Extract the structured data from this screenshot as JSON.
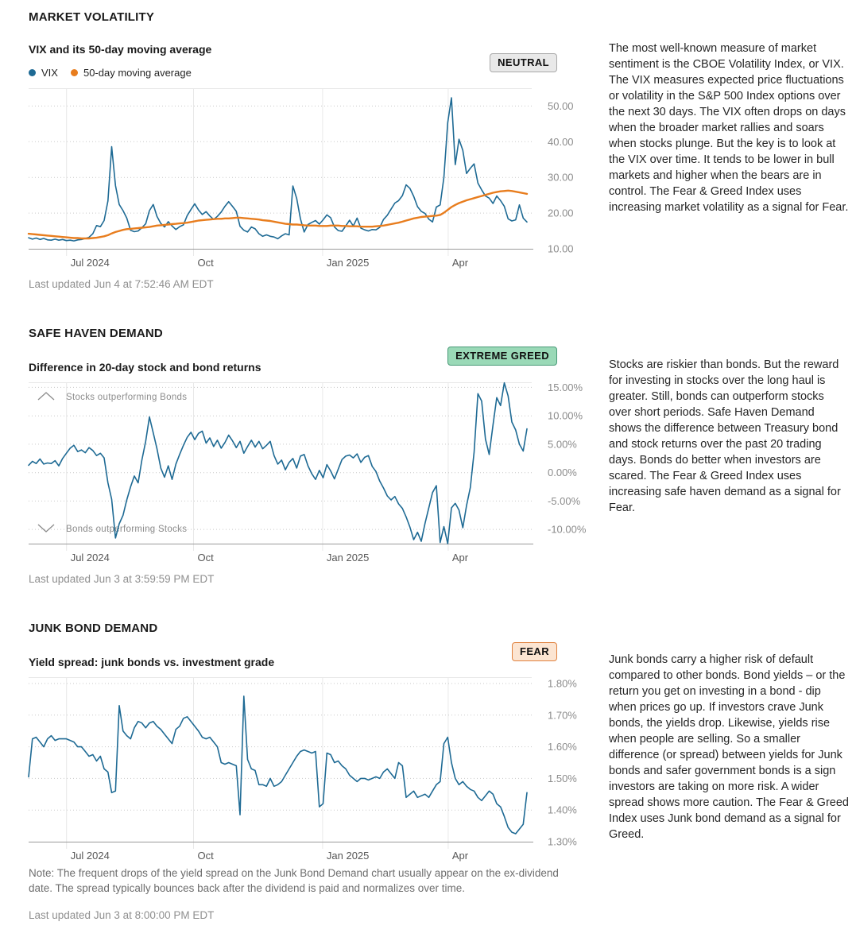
{
  "colors": {
    "line_blue": "#1e6a94",
    "line_orange": "#e87d1e",
    "grid": "#e8e8e8",
    "dotted_grid": "#c9c9c9",
    "axis": "#9a9a9a",
    "y_tick_label": "#8c8c8c",
    "x_tick_label": "#565656"
  },
  "sections": [
    {
      "heading": "MARKET VOLATILITY",
      "subtitle": "VIX and its 50-day moving average",
      "badge": {
        "label": "NEUTRAL",
        "bg": "#e9e9e9",
        "border": "#a9a9a9"
      },
      "last_updated": "Last updated Jun 4 at 7:52:46 AM EDT",
      "description": "The most well-known measure of market sentiment is the CBOE Volatility Index, or VIX. The VIX measures expected price fluctuations or volatility in the S&P 500 Index options over the next 30 days. The VIX often drops on days when the broader market rallies and soars when stocks plunge. But the key is to look at the VIX over time. It tends to be lower in bull markets and higher when the bears are in control. The Fear & Greed Index uses increasing market volatility as a signal for Fear.",
      "chart_data": {
        "type": "line",
        "ylim": [
          10,
          55
        ],
        "yticks": [
          {
            "label": "50.00",
            "value": 50
          },
          {
            "label": "40.00",
            "value": 40
          },
          {
            "label": "30.00",
            "value": 30
          },
          {
            "label": "20.00",
            "value": 20
          },
          {
            "label": "10.00",
            "value": 10
          }
        ],
        "x_axis": {
          "ticks": [
            {
              "label": "Jul 2024",
              "pos": 0.076
            },
            {
              "label": "Oct",
              "pos": 0.331
            },
            {
              "label": "Jan 2025",
              "pos": 0.59
            },
            {
              "label": "Apr",
              "pos": 0.842
            }
          ]
        },
        "series": [
          {
            "name": "VIX",
            "color": "#1e6a94",
            "width": 1.6,
            "values": [
              13.1,
              12.7,
              13.0,
              12.6,
              12.9,
              12.5,
              12.4,
              12.7,
              12.4,
              12.6,
              12.3,
              12.4,
              12.2,
              12.5,
              12.6,
              12.9,
              13.2,
              14.2,
              16.5,
              16.2,
              17.9,
              23.4,
              38.6,
              27.7,
              22.4,
              20.7,
              18.6,
              15.2,
              14.8,
              15.0,
              15.9,
              17.0,
              20.7,
              22.4,
              19.1,
              17.1,
              16.1,
              17.6,
              16.4,
              15.4,
              16.2,
              16.7,
              19.3,
              21.0,
              22.6,
              20.9,
              19.6,
              20.4,
              19.2,
              18.2,
              19.1,
              20.3,
              21.9,
              23.2,
              21.9,
              20.5,
              16.3,
              15.2,
              14.7,
              16.1,
              15.6,
              14.2,
              13.5,
              13.9,
              13.5,
              13.3,
              12.8,
              13.6,
              14.2,
              13.9,
              27.6,
              24.1,
              18.4,
              14.7,
              16.8,
              17.4,
              17.9,
              16.9,
              18.1,
              19.5,
              18.7,
              16.1,
              15.1,
              14.9,
              16.4,
              18.0,
              16.4,
              18.6,
              15.8,
              15.3,
              15.0,
              15.4,
              15.3,
              16.0,
              18.2,
              19.4,
              21.1,
              22.8,
              23.5,
              24.9,
              27.9,
              26.9,
              24.7,
              21.8,
              20.5,
              19.9,
              18.3,
              17.5,
              21.7,
              22.3,
              30.0,
              45.3,
              52.3,
              33.6,
              40.7,
              37.6,
              31.1,
              32.6,
              33.8,
              28.4,
              26.5,
              24.8,
              24.2,
              22.7,
              24.8,
              23.5,
              21.9,
              18.4,
              17.8,
              18.1,
              22.3,
              18.6,
              17.5
            ]
          },
          {
            "name": "50-day moving average",
            "color": "#e87d1e",
            "width": 2.4,
            "values": [
              14.2,
              14.1,
              14.0,
              13.9,
              13.8,
              13.7,
              13.6,
              13.5,
              13.4,
              13.3,
              13.2,
              13.1,
              13.0,
              13.0,
              12.9,
              12.9,
              12.9,
              13.0,
              13.1,
              13.3,
              13.5,
              13.8,
              14.3,
              14.7,
              15.0,
              15.3,
              15.5,
              15.6,
              15.7,
              15.8,
              15.9,
              16.0,
              16.1,
              16.3,
              16.5,
              16.6,
              16.7,
              16.8,
              16.9,
              17.0,
              17.1,
              17.2,
              17.3,
              17.5,
              17.7,
              17.9,
              18.0,
              18.1,
              18.2,
              18.3,
              18.4,
              18.4,
              18.5,
              18.5,
              18.6,
              18.7,
              18.7,
              18.6,
              18.5,
              18.4,
              18.3,
              18.2,
              18.0,
              17.9,
              17.8,
              17.6,
              17.4,
              17.2,
              17.0,
              16.9,
              16.8,
              16.8,
              16.7,
              16.6,
              16.5,
              16.5,
              16.5,
              16.4,
              16.4,
              16.4,
              16.5,
              16.5,
              16.5,
              16.4,
              16.4,
              16.3,
              16.3,
              16.3,
              16.2,
              16.2,
              16.2,
              16.2,
              16.3,
              16.4,
              16.5,
              16.7,
              16.9,
              17.1,
              17.3,
              17.6,
              17.9,
              18.2,
              18.5,
              18.7,
              18.9,
              19.0,
              19.1,
              19.2,
              19.3,
              19.5,
              20.1,
              20.9,
              21.7,
              22.3,
              22.8,
              23.2,
              23.6,
              23.9,
              24.2,
              24.5,
              24.8,
              25.1,
              25.4,
              25.7,
              25.9,
              26.1,
              26.2,
              26.3,
              26.2,
              26.0,
              25.8,
              25.6,
              25.4
            ]
          }
        ]
      }
    },
    {
      "heading": "SAFE HAVEN DEMAND",
      "subtitle": "Difference in 20-day stock and bond returns",
      "badge": {
        "label": "EXTREME GREED",
        "bg": "#9ad9b7",
        "border": "#4a9a78"
      },
      "last_updated": "Last updated Jun 3 at 3:59:59 PM EDT",
      "description": "Stocks are riskier than bonds. But the reward for investing in stocks over the long haul is greater. Still, bonds can outperform stocks over short periods. Safe Haven Demand shows the difference between Treasury bond and stock returns over the past 20 trading days. Bonds do better when investors are scared. The Fear & Greed Index uses increasing safe haven demand as a signal for Fear.",
      "chart_data": {
        "type": "line",
        "ylim": [
          -12.5,
          15.9
        ],
        "yticks": [
          {
            "label": "15.00%",
            "value": 15
          },
          {
            "label": "10.00%",
            "value": 10
          },
          {
            "label": "5.00%",
            "value": 5
          },
          {
            "label": "0.00%",
            "value": 0
          },
          {
            "label": "-5.00%",
            "value": -5
          },
          {
            "label": "-10.00%",
            "value": -10
          }
        ],
        "x_axis": {
          "ticks": [
            {
              "label": "Jul 2024",
              "pos": 0.076
            },
            {
              "label": "Oct",
              "pos": 0.331
            },
            {
              "label": "Jan 2025",
              "pos": 0.59
            },
            {
              "label": "Apr",
              "pos": 0.842
            }
          ]
        },
        "annotations": {
          "top": "Stocks outperforming Bonds",
          "bottom": "Bonds outperforming Stocks"
        },
        "series": [
          {
            "name": "Difference in 20-day stock and bond returns",
            "color": "#1e6a94",
            "width": 1.6,
            "values": [
              1.3,
              2.0,
              1.6,
              2.4,
              1.5,
              1.7,
              1.6,
              2.1,
              1.2,
              2.5,
              3.4,
              4.3,
              4.8,
              3.7,
              4.0,
              3.5,
              4.4,
              3.9,
              3.0,
              3.4,
              2.6,
              -1.8,
              -4.7,
              -11.5,
              -9.0,
              -7.5,
              -4.8,
              -2.5,
              -0.6,
              -1.8,
              2.2,
              5.5,
              9.8,
              7.0,
              4.2,
              0.8,
              -0.8,
              1.2,
              -1.2,
              1.5,
              3.2,
              4.8,
              6.2,
              7.1,
              5.8,
              6.9,
              7.3,
              5.2,
              6.1,
              4.6,
              5.7,
              4.3,
              5.3,
              6.6,
              5.6,
              4.4,
              5.5,
              3.4,
              4.6,
              5.7,
              4.5,
              5.5,
              4.2,
              4.8,
              5.5,
              3.0,
              1.5,
              2.2,
              0.5,
              1.8,
              2.5,
              0.8,
              2.9,
              3.2,
              1.2,
              -0.2,
              -1.2,
              0.4,
              -0.9,
              1.4,
              0.3,
              -1.1,
              0.6,
              2.3,
              2.9,
              3.1,
              2.6,
              3.3,
              1.8,
              2.7,
              3.0,
              1.1,
              0.2,
              -1.5,
              -2.7,
              -4.1,
              -4.8,
              -4.2,
              -5.5,
              -6.3,
              -7.8,
              -9.6,
              -11.8,
              -10.5,
              -12.1,
              -8.9,
              -6.2,
              -3.5,
              -2.3,
              -12.3,
              -9.5,
              -12.5,
              -6.2,
              -5.4,
              -6.6,
              -9.7,
              -5.8,
              -2.6,
              3.6,
              13.9,
              12.6,
              5.9,
              3.2,
              8.4,
              13.2,
              11.8,
              15.8,
              13.5,
              8.9,
              7.5,
              5.0,
              3.8,
              7.7
            ]
          }
        ]
      }
    },
    {
      "heading": "JUNK BOND DEMAND",
      "subtitle": "Yield spread: junk bonds vs. investment grade",
      "badge": {
        "label": "FEAR",
        "bg": "#fce5d2",
        "border": "#e0823f"
      },
      "last_updated": "Last updated Jun 3 at 8:00:00 PM EDT",
      "note": "Note: The frequent drops of the yield spread on the Junk Bond Demand chart usually appear on the ex-dividend date. The spread typically bounces back after the dividend is paid and normalizes over time.",
      "description": "Junk bonds carry a higher risk of default compared to other bonds. Bond yields – or the return you get on investing in a bond - dip when prices go up. If investors crave Junk bonds, the yields drop. Likewise, yields rise when people are selling. So a smaller difference (or spread) between yields for Junk bonds and safer government bonds is a sign investors are taking on more risk. A wider spread shows more caution. The Fear & Greed Index uses Junk bond demand as a signal for Greed.",
      "chart_data": {
        "type": "line",
        "ylim": [
          1.3,
          1.82
        ],
        "yticks": [
          {
            "label": "1.80%",
            "value": 1.8
          },
          {
            "label": "1.70%",
            "value": 1.7
          },
          {
            "label": "1.60%",
            "value": 1.6
          },
          {
            "label": "1.50%",
            "value": 1.5
          },
          {
            "label": "1.40%",
            "value": 1.4
          },
          {
            "label": "1.30%",
            "value": 1.3
          }
        ],
        "x_axis": {
          "ticks": [
            {
              "label": "Jul 2024",
              "pos": 0.076
            },
            {
              "label": "Oct",
              "pos": 0.331
            },
            {
              "label": "Jan 2025",
              "pos": 0.59
            },
            {
              "label": "Apr",
              "pos": 0.842
            }
          ]
        },
        "series": [
          {
            "name": "Yield spread: junk bonds vs. investment grade",
            "color": "#1e6a94",
            "width": 1.6,
            "values": [
              1.505,
              1.625,
              1.63,
              1.615,
              1.6,
              1.625,
              1.635,
              1.62,
              1.625,
              1.625,
              1.625,
              1.62,
              1.615,
              1.6,
              1.6,
              1.585,
              1.57,
              1.575,
              1.555,
              1.57,
              1.53,
              1.52,
              1.455,
              1.46,
              1.73,
              1.65,
              1.635,
              1.625,
              1.66,
              1.68,
              1.675,
              1.66,
              1.675,
              1.68,
              1.665,
              1.655,
              1.64,
              1.625,
              1.61,
              1.655,
              1.665,
              1.69,
              1.695,
              1.68,
              1.665,
              1.65,
              1.63,
              1.625,
              1.63,
              1.615,
              1.6,
              1.55,
              1.545,
              1.55,
              1.545,
              1.54,
              1.385,
              1.76,
              1.56,
              1.53,
              1.525,
              1.48,
              1.48,
              1.475,
              1.5,
              1.475,
              1.48,
              1.49,
              1.51,
              1.53,
              1.55,
              1.57,
              1.585,
              1.59,
              1.585,
              1.58,
              1.585,
              1.41,
              1.42,
              1.58,
              1.575,
              1.55,
              1.555,
              1.54,
              1.53,
              1.51,
              1.5,
              1.49,
              1.5,
              1.5,
              1.495,
              1.5,
              1.505,
              1.5,
              1.52,
              1.53,
              1.515,
              1.5,
              1.55,
              1.54,
              1.44,
              1.45,
              1.46,
              1.44,
              1.445,
              1.45,
              1.44,
              1.46,
              1.48,
              1.49,
              1.61,
              1.63,
              1.55,
              1.5,
              1.48,
              1.49,
              1.475,
              1.465,
              1.46,
              1.44,
              1.43,
              1.445,
              1.46,
              1.45,
              1.42,
              1.41,
              1.38,
              1.345,
              1.33,
              1.325,
              1.34,
              1.355,
              1.455
            ]
          }
        ]
      }
    }
  ]
}
